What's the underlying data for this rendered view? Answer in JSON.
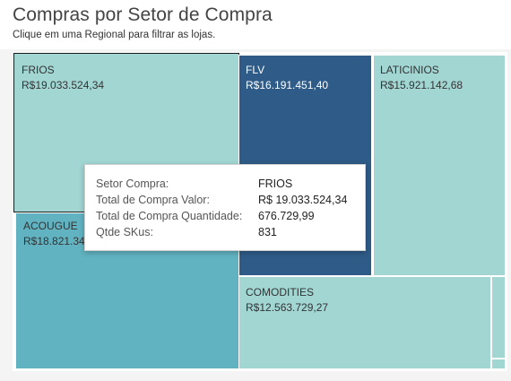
{
  "header": {
    "title": "Compras por Setor de Compra",
    "subtitle": "Clique em uma Regional para filtrar as lojas."
  },
  "colors": {
    "frios": "#a1d6d3",
    "flv": "#2e5b87",
    "laticinios": "#a1d6d3",
    "acougue": "#62b3c2",
    "comodities": "#a1d6d3",
    "small_segments": "#a1d6d3",
    "tile_border": "#ffffff"
  },
  "chart_data": {
    "type": "treemap",
    "title": "Compras por Setor de Compra",
    "measure": "Total de Compra Valor",
    "items": [
      {
        "name": "FRIOS",
        "label": "R$19.033.524,34",
        "value": 19033524.34
      },
      {
        "name": "ACOUGUE",
        "label": "R$18.821.34",
        "value": null
      },
      {
        "name": "FLV",
        "label": "R$16.191.451,40",
        "value": 16191451.4
      },
      {
        "name": "LATICINIOS",
        "label": "R$15.921.142,68",
        "value": 15921142.68
      },
      {
        "name": "COMODITIES",
        "label": "R$12.563.729,27",
        "value": 12563729.27
      }
    ]
  },
  "tooltip": {
    "rows": [
      {
        "key": "Setor Compra:",
        "value": "FRIOS"
      },
      {
        "key": "Total de Compra Valor:",
        "value": "R$ 19.033.524,34"
      },
      {
        "key": "Total de Compra Quantidade:",
        "value": "676.729,99"
      },
      {
        "key": "Qtde SKus:",
        "value": "831"
      }
    ]
  }
}
